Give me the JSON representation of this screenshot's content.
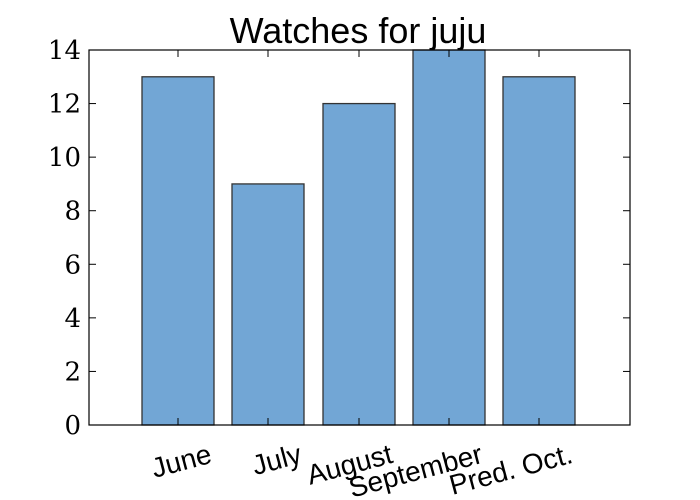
{
  "chart_data": {
    "type": "bar",
    "title": "Watches for juju",
    "categories": [
      "June",
      "July",
      "August",
      "September",
      "Pred. Oct."
    ],
    "values": [
      13,
      9,
      12,
      14,
      13
    ],
    "ylim": [
      0,
      14
    ],
    "yticks": [
      0,
      2,
      4,
      6,
      8,
      10,
      12,
      14
    ],
    "xlabel": "",
    "ylabel": "",
    "grid": false,
    "bar_color": "#72a6d5",
    "edge_color": "#333333"
  }
}
